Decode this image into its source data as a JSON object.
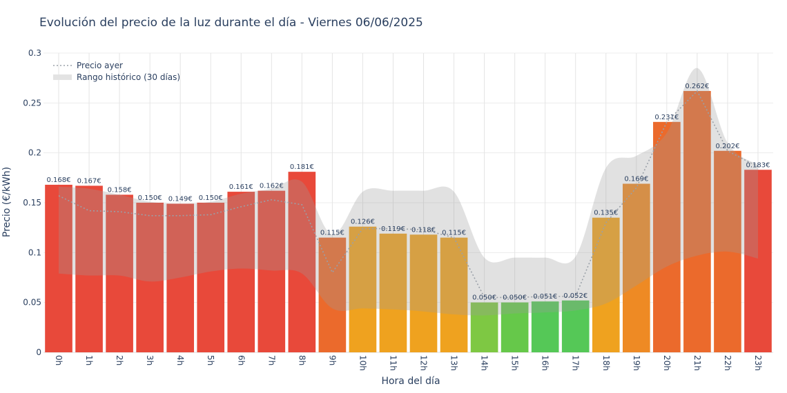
{
  "chart_data": {
    "type": "bar",
    "title": "Evolución del precio de la luz durante el día - Viernes 06/06/2025",
    "xlabel": "Hora del día",
    "ylabel": "Precio (€/kWh)",
    "ylim": [
      0,
      0.3
    ],
    "yticks": [
      0,
      0.05,
      0.1,
      0.15,
      0.2,
      0.25,
      0.3
    ],
    "ytick_labels": [
      "0",
      "0.05",
      "0.1",
      "0.15",
      "0.2",
      "0.25",
      "0.3"
    ],
    "categories": [
      "0h",
      "1h",
      "2h",
      "3h",
      "4h",
      "5h",
      "6h",
      "7h",
      "8h",
      "9h",
      "10h",
      "11h",
      "12h",
      "13h",
      "14h",
      "15h",
      "16h",
      "17h",
      "18h",
      "19h",
      "20h",
      "21h",
      "22h",
      "23h"
    ],
    "values": [
      0.168,
      0.167,
      0.158,
      0.15,
      0.149,
      0.15,
      0.161,
      0.162,
      0.181,
      0.115,
      0.126,
      0.119,
      0.118,
      0.115,
      0.05,
      0.05,
      0.051,
      0.052,
      0.135,
      0.169,
      0.231,
      0.262,
      0.202,
      0.183
    ],
    "value_labels": [
      "0.168€",
      "0.167€",
      "0.158€",
      "0.150€",
      "0.149€",
      "0.150€",
      "0.161€",
      "0.162€",
      "0.181€",
      "0.115€",
      "0.126€",
      "0.119€",
      "0.118€",
      "0.115€",
      "0.050€",
      "0.050€",
      "0.051€",
      "0.052€",
      "0.135€",
      "0.169€",
      "0.231€",
      "0.262€",
      "0.202€",
      "0.183€"
    ],
    "bar_colors": [
      "#e8493a",
      "#e8493a",
      "#e8493a",
      "#e8493a",
      "#e8493a",
      "#e8493a",
      "#e8493a",
      "#e8493a",
      "#e8493a",
      "#eb6a2c",
      "#efa21f",
      "#efa21f",
      "#efa21f",
      "#efa21f",
      "#7ec843",
      "#66c84a",
      "#55c857",
      "#55c857",
      "#efa21f",
      "#ee8a24",
      "#eb6a2c",
      "#eb6a2c",
      "#eb6a2c",
      "#e8493a"
    ],
    "series": [
      {
        "name": "Precio ayer",
        "style": "dotted-line",
        "color": "#9aa0a8",
        "values": [
          0.157,
          0.142,
          0.141,
          0.137,
          0.137,
          0.138,
          0.146,
          0.153,
          0.148,
          0.08,
          0.124,
          0.124,
          0.123,
          0.115,
          0.055,
          0.055,
          0.056,
          0.056,
          0.13,
          0.165,
          0.231,
          0.262,
          0.202,
          0.186
        ]
      },
      {
        "name": "Rango histórico (30 días)",
        "style": "band",
        "color": "#d0d0d0",
        "upper": [
          0.166,
          0.164,
          0.158,
          0.151,
          0.149,
          0.151,
          0.159,
          0.164,
          0.171,
          0.118,
          0.161,
          0.162,
          0.162,
          0.161,
          0.095,
          0.095,
          0.095,
          0.096,
          0.185,
          0.197,
          0.22,
          0.285,
          0.21,
          0.188
        ],
        "lower": [
          0.079,
          0.077,
          0.077,
          0.071,
          0.075,
          0.081,
          0.084,
          0.082,
          0.079,
          0.044,
          0.044,
          0.043,
          0.041,
          0.038,
          0.037,
          0.039,
          0.04,
          0.042,
          0.049,
          0.067,
          0.086,
          0.097,
          0.101,
          0.094
        ]
      }
    ],
    "legend_position": "top-left",
    "grid": true
  }
}
